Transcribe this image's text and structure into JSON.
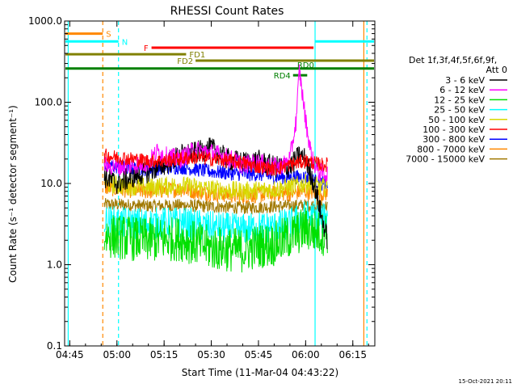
{
  "chart_data": {
    "type": "line",
    "title": "RHESSI Count Rates",
    "xlabel": "Start Time (11-Mar-04 04:43:22)",
    "ylabel": "Count Rate (s⁻¹ detector segment⁻¹)",
    "yscale": "log",
    "ylim": [
      0.1,
      1000.0
    ],
    "xlim": [
      "04:43:22",
      "06:22:00"
    ],
    "x_ticks": [
      "04:45",
      "05:00",
      "05:15",
      "05:30",
      "05:45",
      "06:00",
      "06:15"
    ],
    "y_ticks": [
      "0.1",
      "1.0",
      "10.0",
      "100.0",
      "1000.0"
    ],
    "footer_date": "15-Oct-2021 20:11",
    "legend": {
      "header": [
        "Det 1f,3f,4f,5f,6f,9f,",
        "Att 0"
      ],
      "placement": "right",
      "entries": [
        {
          "label": "3 - 6 keV",
          "color": "#000000"
        },
        {
          "label": "6 - 12 keV",
          "color": "#ff00ff"
        },
        {
          "label": "12 - 25 keV",
          "color": "#00e000"
        },
        {
          "label": "25 - 50 keV",
          "color": "#00ffff"
        },
        {
          "label": "50 - 100 keV",
          "color": "#d8d800"
        },
        {
          "label": "100 - 300 keV",
          "color": "#ff0000"
        },
        {
          "label": "300 - 800 keV",
          "color": "#0000ff"
        },
        {
          "label": "800 - 7000 keV",
          "color": "#ff8800"
        },
        {
          "label": "7000 - 15000 keV",
          "color": "#a07800"
        }
      ]
    },
    "series": [
      {
        "name": "3 - 6 keV",
        "color": "#000000",
        "x": [
          "04:56",
          "05:00",
          "05:05",
          "05:10",
          "05:15",
          "05:20",
          "05:25",
          "05:30",
          "05:35",
          "05:40",
          "05:45",
          "05:50",
          "05:55",
          "05:58",
          "06:00",
          "06:03",
          "06:05",
          "06:07"
        ],
        "y": [
          12,
          10,
          12,
          14,
          17,
          22,
          24,
          27,
          20,
          18,
          19,
          16,
          16,
          22,
          20,
          9,
          4,
          2
        ]
      },
      {
        "name": "6 - 12 keV",
        "color": "#ff00ff",
        "x": [
          "04:56",
          "05:00",
          "05:05",
          "05:10",
          "05:13",
          "05:15",
          "05:20",
          "05:25",
          "05:30",
          "05:35",
          "05:40",
          "05:45",
          "05:50",
          "05:53",
          "05:55",
          "05:57",
          "05:58",
          "06:00",
          "06:02",
          "06:04",
          "06:07"
        ],
        "y": [
          17,
          16,
          17,
          18,
          25,
          22,
          20,
          26,
          24,
          21,
          17,
          18,
          16,
          17,
          20,
          60,
          250,
          60,
          20,
          14,
          13
        ]
      },
      {
        "name": "12 - 25 keV",
        "color": "#00e000",
        "x": [
          "04:56",
          "05:00",
          "05:10",
          "05:20",
          "05:30",
          "05:40",
          "05:45",
          "05:50",
          "05:55",
          "06:00",
          "06:05",
          "06:07"
        ],
        "y": [
          2.3,
          2.2,
          2.0,
          2.1,
          1.6,
          1.5,
          1.7,
          1.8,
          2.2,
          2.8,
          2.4,
          2.5
        ]
      },
      {
        "name": "25 - 50 keV",
        "color": "#00ffff",
        "x": [
          "04:56",
          "05:00",
          "05:10",
          "05:20",
          "05:30",
          "05:40",
          "05:45",
          "05:50",
          "05:55",
          "06:00",
          "06:05",
          "06:07"
        ],
        "y": [
          3.5,
          3.3,
          3.2,
          3.3,
          2.9,
          2.7,
          2.9,
          2.9,
          3.2,
          4.0,
          3.6,
          3.7
        ]
      },
      {
        "name": "50 - 100 keV",
        "color": "#d8d800",
        "x": [
          "04:56",
          "05:00",
          "05:10",
          "05:20",
          "05:30",
          "05:40",
          "05:50",
          "05:55",
          "06:00",
          "06:05",
          "06:07"
        ],
        "y": [
          10,
          9.5,
          9,
          9.5,
          8.5,
          8,
          8.5,
          9,
          10,
          9,
          9
        ]
      },
      {
        "name": "100 - 300 keV",
        "color": "#ff0000",
        "x": [
          "04:56",
          "05:00",
          "05:05",
          "05:10",
          "05:15",
          "05:20",
          "05:25",
          "05:30",
          "05:35",
          "05:40",
          "05:45",
          "05:50",
          "05:55",
          "06:00",
          "06:05",
          "06:07"
        ],
        "y": [
          22,
          21,
          20,
          19,
          19,
          20,
          21,
          20,
          19,
          18,
          16,
          15,
          17,
          19,
          17,
          17
        ]
      },
      {
        "name": "300 - 800 keV",
        "color": "#0000ff",
        "x": [
          "04:56",
          "05:00",
          "05:10",
          "05:20",
          "05:30",
          "05:40",
          "05:45",
          "05:50",
          "05:55",
          "06:00",
          "06:05",
          "06:07"
        ],
        "y": [
          17,
          16,
          15,
          16,
          14,
          13,
          13,
          12,
          12,
          12,
          10,
          10
        ]
      },
      {
        "name": "800 - 7000 keV",
        "color": "#ff8800",
        "x": [
          "04:56",
          "05:00",
          "05:10",
          "05:20",
          "05:30",
          "05:40",
          "05:50",
          "05:55",
          "06:00",
          "06:05",
          "06:07"
        ],
        "y": [
          9,
          8.5,
          8,
          8.5,
          7.5,
          7,
          7.5,
          7.5,
          8,
          7.5,
          7.5
        ]
      },
      {
        "name": "7000 - 15000 keV",
        "color": "#a07800",
        "x": [
          "04:56",
          "05:00",
          "05:10",
          "05:20",
          "05:30",
          "05:40",
          "05:50",
          "06:00",
          "06:07"
        ],
        "y": [
          5.5,
          5.5,
          5.3,
          5.4,
          5.2,
          5.0,
          5.2,
          5.4,
          5.3
        ]
      }
    ],
    "bars": [
      {
        "label": "S",
        "color": "#ff8800",
        "y": 700,
        "x": [
          "04:43:22",
          "04:55:30"
        ]
      },
      {
        "label": "N",
        "color": "#00ffff",
        "y": 560,
        "x": [
          "04:43:22",
          "05:00:30"
        ]
      },
      {
        "label": "",
        "color": "#00ffff",
        "y": 560,
        "x": [
          "06:03:00",
          "06:22:00"
        ]
      },
      {
        "label": "F",
        "color": "#ff0000",
        "y": 470,
        "x": [
          "05:11:00",
          "06:02:30"
        ]
      },
      {
        "label": "FD1",
        "color": "#808000",
        "y": 390,
        "x": [
          "04:43:22",
          "05:22:00"
        ]
      },
      {
        "label": "FD2",
        "color": "#808000",
        "y": 325,
        "x": [
          "05:25:00",
          "06:22:00"
        ]
      },
      {
        "label": "RD0",
        "color": "#008000",
        "y": 260,
        "x": [
          "04:43:22",
          "06:22:00"
        ]
      },
      {
        "label": "RD4",
        "color": "#008000",
        "y": 215,
        "x": [
          "05:56:00",
          "06:00:30"
        ]
      }
    ],
    "vlines": [
      {
        "x": "04:44:30",
        "color": "#00ffff",
        "style": "solid"
      },
      {
        "x": "04:55:30",
        "color": "#ff8800",
        "style": "dashed"
      },
      {
        "x": "05:00:30",
        "color": "#00ffff",
        "style": "dashed"
      },
      {
        "x": "06:03:00",
        "color": "#00ffff",
        "style": "solid"
      },
      {
        "x": "06:18:30",
        "color": "#ff8800",
        "style": "solid"
      },
      {
        "x": "06:19:30",
        "color": "#00ffff",
        "style": "dashed"
      }
    ]
  }
}
